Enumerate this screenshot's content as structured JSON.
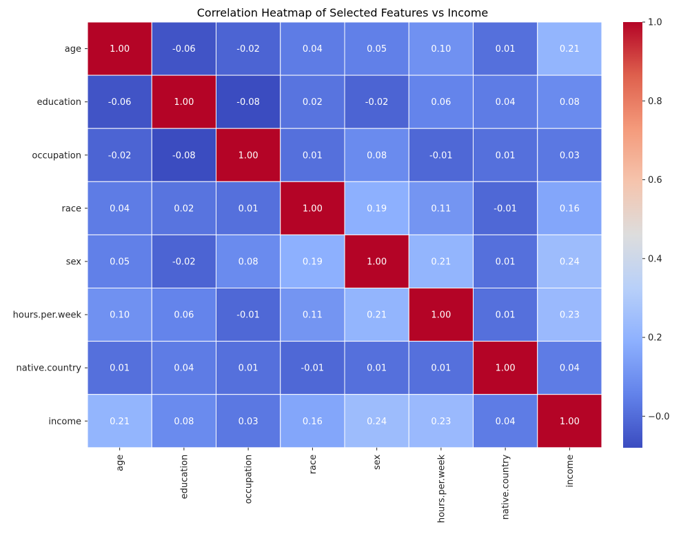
{
  "chart_data": {
    "type": "heatmap",
    "title": "Correlation Heatmap of Selected Features vs Income",
    "xlabel": "",
    "ylabel": "",
    "row_labels": [
      "age",
      "education",
      "occupation",
      "race",
      "sex",
      "hours.per.week",
      "native.country",
      "income"
    ],
    "col_labels": [
      "age",
      "education",
      "occupation",
      "race",
      "sex",
      "hours.per.week",
      "native.country",
      "income"
    ],
    "values": [
      [
        1.0,
        -0.06,
        -0.02,
        0.04,
        0.05,
        0.1,
        0.01,
        0.21
      ],
      [
        -0.06,
        1.0,
        -0.08,
        0.02,
        -0.02,
        0.06,
        0.04,
        0.08
      ],
      [
        -0.02,
        -0.08,
        1.0,
        0.01,
        0.08,
        -0.01,
        0.01,
        0.03
      ],
      [
        0.04,
        0.02,
        0.01,
        1.0,
        0.19,
        0.11,
        -0.01,
        0.16
      ],
      [
        0.05,
        -0.02,
        0.08,
        0.19,
        1.0,
        0.21,
        0.01,
        0.24
      ],
      [
        0.1,
        0.06,
        -0.01,
        0.11,
        0.21,
        1.0,
        0.01,
        0.23
      ],
      [
        0.01,
        0.04,
        0.01,
        -0.01,
        0.01,
        0.01,
        1.0,
        0.04
      ],
      [
        0.21,
        0.08,
        0.03,
        0.16,
        0.24,
        0.23,
        0.04,
        1.0
      ]
    ],
    "value_labels": [
      [
        "1.00",
        "-0.06",
        "-0.02",
        "0.04",
        "0.05",
        "0.10",
        "0.01",
        "0.21"
      ],
      [
        "-0.06",
        "1.00",
        "-0.08",
        "0.02",
        "-0.02",
        "0.06",
        "0.04",
        "0.08"
      ],
      [
        "-0.02",
        "-0.08",
        "1.00",
        "0.01",
        "0.08",
        "-0.01",
        "0.01",
        "0.03"
      ],
      [
        "0.04",
        "0.02",
        "0.01",
        "1.00",
        "0.19",
        "0.11",
        "-0.01",
        "0.16"
      ],
      [
        "0.05",
        "-0.02",
        "0.08",
        "0.19",
        "1.00",
        "0.21",
        "0.01",
        "0.24"
      ],
      [
        "0.10",
        "0.06",
        "-0.01",
        "0.11",
        "0.21",
        "1.00",
        "0.01",
        "0.23"
      ],
      [
        "0.01",
        "0.04",
        "0.01",
        "-0.01",
        "0.01",
        "0.01",
        "1.00",
        "0.04"
      ],
      [
        "0.21",
        "0.08",
        "0.03",
        "0.16",
        "0.24",
        "0.23",
        "0.04",
        "1.00"
      ]
    ],
    "colormap": "coolwarm",
    "color_range": [
      -0.08,
      1.0
    ],
    "colorbar_ticks": [
      0.0,
      0.2,
      0.4,
      0.6,
      0.8,
      1.0
    ],
    "colorbar_tick_labels": [
      "−0.0",
      "0.2",
      "0.4",
      "0.6",
      "0.8",
      "1.0"
    ],
    "annotation_colors": {
      "dark_text": "#262626",
      "light_text": "#ffffff"
    }
  }
}
